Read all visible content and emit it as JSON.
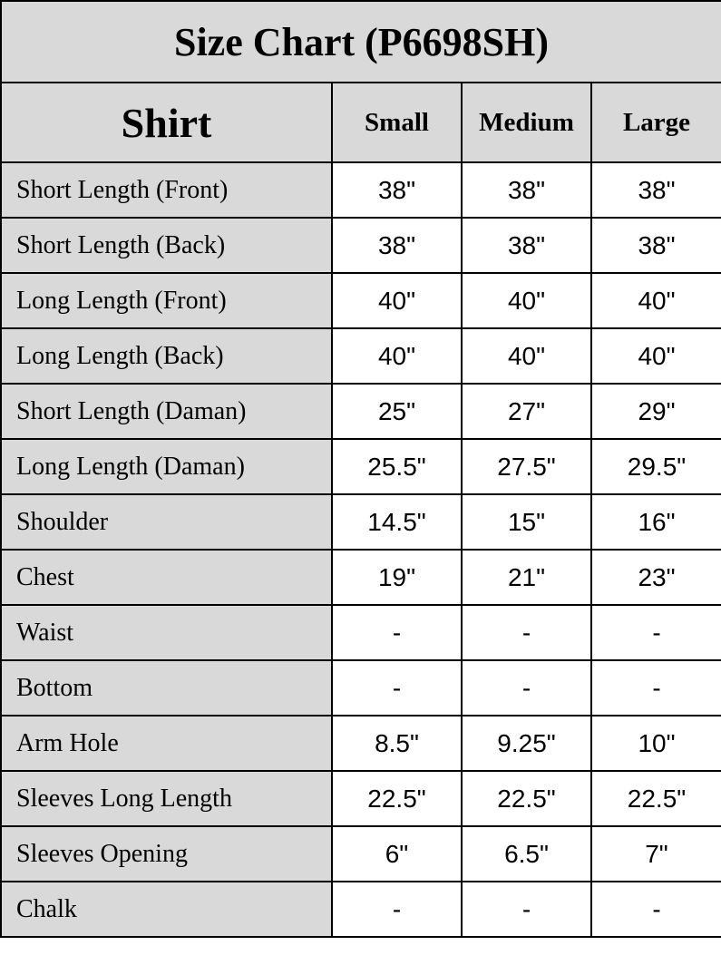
{
  "title": "Size Chart (P6698SH)",
  "header": {
    "section": "Shirt",
    "sizes": [
      "Small",
      "Medium",
      "Large"
    ]
  },
  "colors": {
    "label_bg": "#d9d9d9",
    "value_bg": "#ffffff",
    "border": "#000000"
  },
  "rows": [
    {
      "label": "Short Length (Front)",
      "values": [
        "38\"",
        "38\"",
        "38\""
      ]
    },
    {
      "label": "Short Length (Back)",
      "values": [
        "38\"",
        "38\"",
        "38\""
      ]
    },
    {
      "label": "Long Length (Front)",
      "values": [
        "40\"",
        "40\"",
        "40\""
      ]
    },
    {
      "label": "Long Length (Back)",
      "values": [
        "40\"",
        "40\"",
        "40\""
      ]
    },
    {
      "label": "Short Length (Daman)",
      "values": [
        "25\"",
        "27\"",
        "29\""
      ]
    },
    {
      "label": "Long Length (Daman)",
      "values": [
        "25.5\"",
        "27.5\"",
        "29.5\""
      ]
    },
    {
      "label": "Shoulder",
      "values": [
        "14.5\"",
        "15\"",
        "16\""
      ]
    },
    {
      "label": "Chest",
      "values": [
        "19\"",
        "21\"",
        "23\""
      ]
    },
    {
      "label": "Waist",
      "values": [
        "-",
        "-",
        "-"
      ]
    },
    {
      "label": "Bottom",
      "values": [
        "-",
        "-",
        "-"
      ]
    },
    {
      "label": "Arm Hole",
      "values": [
        "8.5\"",
        "9.25\"",
        "10\""
      ]
    },
    {
      "label": "Sleeves Long Length",
      "values": [
        "22.5\"",
        "22.5\"",
        "22.5\""
      ]
    },
    {
      "label": "Sleeves Opening",
      "values": [
        "6\"",
        "6.5\"",
        "7\""
      ]
    },
    {
      "label": "Chalk",
      "values": [
        "-",
        "-",
        "-"
      ]
    }
  ]
}
